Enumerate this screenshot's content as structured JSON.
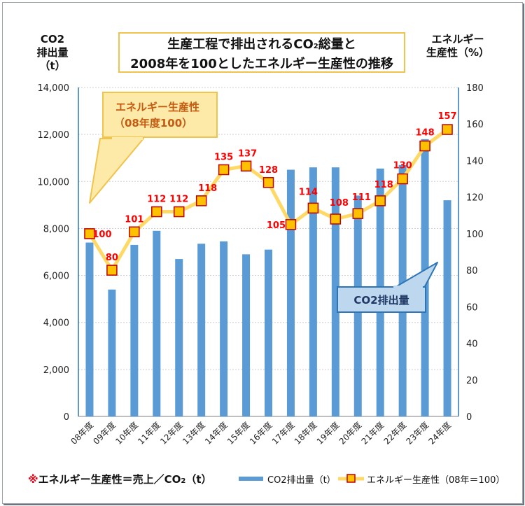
{
  "title": {
    "line1": "生産工程で排出されるCO",
    "sub": "2",
    "line1b": "総量と",
    "line2": "2008年を100としたエネルギー生産性の推移"
  },
  "left_axis_title": {
    "line1": "CO2",
    "line2": "排出量",
    "line3": "（t）"
  },
  "right_axis_title": {
    "line1": "エネルギー",
    "line2": "生産性（%）"
  },
  "callout_energy": {
    "line1": "エネルギー生産性",
    "line2": "（08年度100）"
  },
  "callout_co2": {
    "text": "CO2排出量"
  },
  "footnote": {
    "mark": "※",
    "text": "エネルギー生産性＝売上／CO",
    "sub": "2",
    "text2": "（t）"
  },
  "legend": {
    "bar_label": "CO2排出量（t）",
    "line_label": "エネルギー生産性（08年＝100）"
  },
  "colors": {
    "bar": "#5b9bd5",
    "line": "#ffd966",
    "marker_fill": "#ffc000",
    "marker_border": "#c00000",
    "label_red": "#ff0000",
    "title_border": "#f0c34c"
  },
  "chart_data": {
    "type": "bar+line",
    "categories": [
      "08年度",
      "09年度",
      "10年度",
      "11年度",
      "12年度",
      "13年度",
      "14年度",
      "15年度",
      "16年度",
      "17年度",
      "18年度",
      "19年度",
      "20年度",
      "21年度",
      "22年度",
      "23年度",
      "24年度"
    ],
    "series": [
      {
        "name": "CO2排出量（t）",
        "type": "bar",
        "axis": "left",
        "values": [
          7400,
          5400,
          7300,
          7900,
          6700,
          7350,
          7450,
          6900,
          7100,
          10500,
          10600,
          10600,
          9400,
          10550,
          10700,
          11800,
          9200
        ]
      },
      {
        "name": "エネルギー生産性（08年＝100）",
        "type": "line",
        "axis": "right",
        "values": [
          100,
          80,
          101,
          112,
          112,
          118,
          135,
          137,
          128,
          105,
          114,
          108,
          111,
          118,
          130,
          148,
          157
        ]
      }
    ],
    "left_axis": {
      "min": 0,
      "max": 14000,
      "ticks": [
        "0",
        "2,000",
        "4,000",
        "6,000",
        "8,000",
        "10,000",
        "12,000",
        "14,000"
      ]
    },
    "right_axis": {
      "min": 0,
      "max": 180,
      "ticks": [
        "0",
        "20",
        "40",
        "60",
        "80",
        "100",
        "120",
        "140",
        "160",
        "180"
      ]
    }
  }
}
